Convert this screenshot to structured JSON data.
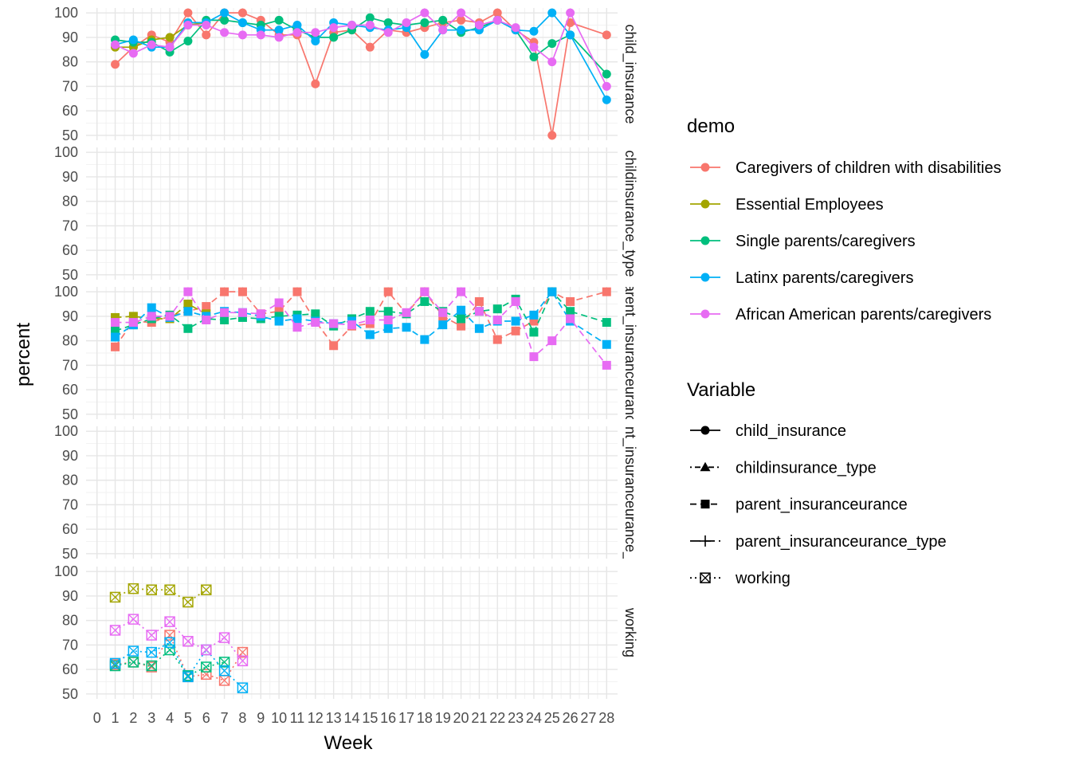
{
  "chart_data": {
    "type": "line",
    "xlabel": "Week",
    "ylabel": "percent",
    "x_ticks": [
      "0",
      "1",
      "2",
      "3",
      "4",
      "5",
      "6",
      "7",
      "8",
      "9",
      "10",
      "11",
      "12",
      "13",
      "14",
      "15",
      "16",
      "17",
      "18",
      "19",
      "20",
      "21",
      "22",
      "23",
      "24",
      "25",
      "26",
      "27",
      "28"
    ],
    "xlim": [
      -0.6,
      28.6
    ],
    "ylim": [
      48,
      102
    ],
    "y_ticks": [
      50,
      60,
      70,
      80,
      90,
      100
    ],
    "grid": true,
    "legend_position": "right",
    "panels": [
      {
        "label": "child_insurance",
        "shape": "circle",
        "dash": "none"
      },
      {
        "label": "childinsurance_type",
        "shape": "triangle",
        "dash": "dotdash"
      },
      {
        "label": "parent_insuranceurance",
        "shape": "square",
        "dash": "dashed"
      },
      {
        "label": "parent_insuranceurance_type",
        "shape": "plus",
        "dash": "longdash"
      },
      {
        "label": "working",
        "shape": "boxcross",
        "dash": "dotted"
      }
    ],
    "color_legend": {
      "title": "demo",
      "items": [
        {
          "name": "Caregivers of children with disabilities",
          "color": "#F8766D"
        },
        {
          "name": "Essential Employees",
          "color": "#A3A500"
        },
        {
          "name": "Single parents/caregivers",
          "color": "#00BF7D"
        },
        {
          "name": "Latinx parents/caregivers",
          "color": "#00B0F6"
        },
        {
          "name": "African American parents/caregivers",
          "color": "#E76BF3"
        }
      ]
    },
    "variable_legend": {
      "title": "Variable",
      "items": [
        {
          "name": "child_insurance",
          "shape": "circle",
          "dash": "none"
        },
        {
          "name": "childinsurance_type",
          "shape": "triangle",
          "dash": "dotdash"
        },
        {
          "name": "parent_insuranceurance",
          "shape": "square",
          "dash": "dashed"
        },
        {
          "name": "parent_insuranceurance_type",
          "shape": "plus",
          "dash": "longdash"
        },
        {
          "name": "working",
          "shape": "boxcross",
          "dash": "dotted"
        }
      ]
    },
    "series": [
      {
        "panel": 0,
        "name": "Caregivers of children with disabilities",
        "x": [
          1,
          2,
          3,
          4,
          5,
          6,
          7,
          8,
          9,
          10,
          11,
          12,
          13,
          14,
          15,
          16,
          17,
          18,
          19,
          20,
          21,
          22,
          23,
          24,
          25,
          26,
          28
        ],
        "y": [
          79,
          86,
          91,
          88,
          100,
          91,
          100,
          100,
          97,
          91,
          91,
          71,
          92,
          93,
          86,
          93,
          92,
          94,
          96,
          97,
          96,
          100,
          93,
          88,
          50,
          96,
          91
        ]
      },
      {
        "panel": 0,
        "name": "Essential Employees",
        "x": [
          1,
          2,
          3,
          4,
          5,
          6
        ],
        "y": [
          86,
          86,
          89,
          90,
          95,
          96
        ]
      },
      {
        "panel": 0,
        "name": "Single parents/caregivers",
        "x": [
          1,
          2,
          3,
          4,
          5,
          6,
          7,
          8,
          9,
          10,
          11,
          12,
          13,
          14,
          15,
          16,
          17,
          18,
          19,
          20,
          21,
          22,
          23,
          24,
          25,
          26,
          28
        ],
        "y": [
          89,
          88,
          88,
          84,
          88.5,
          97,
          97,
          96,
          95,
          97,
          93,
          90,
          90,
          93,
          98,
          96,
          95,
          96,
          97,
          92,
          94,
          97,
          93,
          82,
          87.5,
          91,
          75
        ]
      },
      {
        "panel": 0,
        "name": "Latinx parents/caregivers",
        "x": [
          1,
          2,
          3,
          4,
          5,
          6,
          7,
          8,
          9,
          10,
          11,
          12,
          13,
          14,
          15,
          16,
          17,
          18,
          19,
          20,
          21,
          22,
          23,
          24,
          25,
          26,
          28
        ],
        "y": [
          87,
          89,
          86,
          86,
          96,
          96,
          100,
          96,
          93,
          93,
          95,
          88.5,
          96,
          95,
          94,
          93,
          94,
          83,
          93,
          93,
          93,
          97,
          93,
          92.5,
          100,
          91,
          64.5
        ]
      },
      {
        "panel": 0,
        "name": "African American parents/caregivers",
        "x": [
          1,
          2,
          3,
          4,
          5,
          6,
          7,
          8,
          9,
          10,
          11,
          12,
          13,
          14,
          15,
          16,
          17,
          18,
          19,
          20,
          21,
          22,
          23,
          24,
          25,
          26,
          28
        ],
        "y": [
          87,
          83.5,
          87,
          86,
          95,
          95,
          92,
          91,
          91,
          90,
          92,
          92,
          94,
          95,
          95,
          92,
          96,
          100,
          93,
          100,
          95,
          97,
          94,
          86,
          80,
          100,
          70
        ]
      },
      {
        "panel": 2,
        "name": "Caregivers of children with disabilities",
        "x": [
          1,
          2,
          3,
          4,
          5,
          6,
          7,
          8,
          9,
          10,
          11,
          12,
          13,
          14,
          15,
          16,
          17,
          18,
          19,
          20,
          21,
          22,
          23,
          24,
          25,
          26,
          28
        ],
        "y": [
          77.5,
          88,
          87.5,
          90,
          92,
          94,
          100,
          100,
          91,
          92,
          100,
          88,
          78,
          86,
          87,
          100,
          91,
          100,
          90,
          86,
          96,
          80.5,
          84,
          88,
          100,
          96,
          100
        ]
      },
      {
        "panel": 2,
        "name": "Essential Employees",
        "x": [
          1,
          2,
          3,
          4,
          5,
          6
        ],
        "y": [
          89.5,
          90,
          89,
          89,
          95,
          91
        ]
      },
      {
        "panel": 2,
        "name": "Single parents/caregivers",
        "x": [
          1,
          2,
          3,
          4,
          5,
          6,
          7,
          8,
          9,
          10,
          11,
          12,
          13,
          14,
          15,
          16,
          17,
          18,
          19,
          20,
          21,
          22,
          23,
          24,
          25,
          26,
          28
        ],
        "y": [
          84,
          86.5,
          89,
          90.5,
          85,
          89,
          88.5,
          89.5,
          89,
          90,
          90.5,
          91,
          86,
          89,
          92,
          92,
          91,
          96,
          92,
          89,
          92,
          93,
          97,
          83.5,
          100,
          92,
          87.5
        ]
      },
      {
        "panel": 2,
        "name": "Latinx parents/caregivers",
        "x": [
          1,
          2,
          3,
          4,
          5,
          6,
          7,
          8,
          9,
          10,
          11,
          12,
          13,
          14,
          15,
          16,
          17,
          18,
          19,
          20,
          21,
          22,
          23,
          24,
          25,
          26,
          28
        ],
        "y": [
          81.5,
          86.5,
          93.5,
          89.5,
          92,
          90,
          92,
          91.5,
          90,
          88,
          89,
          88,
          87,
          88,
          82.5,
          85,
          85.5,
          80.5,
          86.5,
          92.5,
          85,
          88,
          88,
          90.5,
          100,
          88,
          78.5
        ]
      },
      {
        "panel": 2,
        "name": "African American parents/caregivers",
        "x": [
          1,
          2,
          3,
          4,
          5,
          6,
          7,
          8,
          9,
          10,
          11,
          12,
          13,
          14,
          15,
          16,
          17,
          18,
          19,
          20,
          21,
          22,
          23,
          24,
          25,
          26,
          28
        ],
        "y": [
          87.5,
          87.5,
          90,
          90,
          100,
          88.5,
          91.5,
          91.5,
          91,
          95.5,
          85.5,
          87.5,
          87,
          86.5,
          88.5,
          88.5,
          91.5,
          100,
          91.5,
          100,
          92,
          88.5,
          96,
          73.5,
          80,
          89,
          70
        ]
      },
      {
        "panel": 4,
        "name": "Caregivers of children with disabilities",
        "x": [
          1,
          2,
          3,
          4,
          5,
          6,
          7,
          8
        ],
        "y": [
          62,
          63,
          61,
          74,
          57,
          58,
          55.5,
          67
        ]
      },
      {
        "panel": 4,
        "name": "Essential Employees",
        "x": [
          1,
          2,
          3,
          4,
          5,
          6
        ],
        "y": [
          89.5,
          93,
          92.5,
          92.5,
          87.5,
          92.5
        ]
      },
      {
        "panel": 4,
        "name": "Single parents/caregivers",
        "x": [
          1,
          2,
          3,
          4,
          5,
          6,
          7
        ],
        "y": [
          61.5,
          63,
          61.5,
          68,
          57.5,
          61,
          63
        ]
      },
      {
        "panel": 4,
        "name": "Latinx parents/caregivers",
        "x": [
          1,
          2,
          3,
          4,
          5,
          6,
          7,
          8
        ],
        "y": [
          62.5,
          67.5,
          67,
          71,
          57,
          68,
          59.5,
          52.5
        ]
      },
      {
        "panel": 4,
        "name": "African American parents/caregivers",
        "x": [
          1,
          2,
          3,
          4,
          5,
          6,
          7,
          8
        ],
        "y": [
          76,
          80.5,
          74,
          79.5,
          71.5,
          68,
          73,
          63.5
        ]
      }
    ]
  }
}
